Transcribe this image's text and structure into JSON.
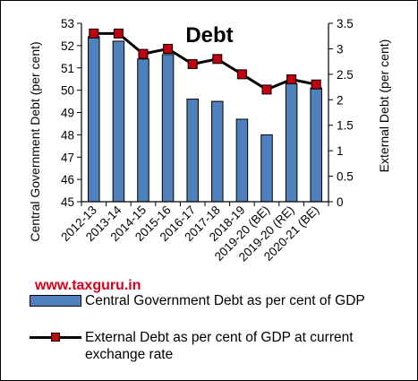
{
  "chart_data": {
    "type": "bar+line",
    "title": "Debt",
    "categories": [
      "2012-13",
      "2013-14",
      "2014-15",
      "2015-16",
      "2016-17",
      "2017-18",
      "2018-19",
      "2019-20 (BE)",
      "2019-20 (RE)",
      "2020-21 (BE)"
    ],
    "series": [
      {
        "name": "Central Government Debt as per cent of GDP",
        "type": "bar",
        "axis": "left",
        "color": "#4f81bd",
        "values": [
          52.4,
          52.2,
          51.4,
          51.6,
          49.6,
          49.5,
          48.7,
          48.0,
          50.3,
          50.1
        ]
      },
      {
        "name": "External Debt as per cent of GDP at current exchange rate",
        "type": "line",
        "axis": "right",
        "color": "#000000",
        "marker_color": "#c0000e",
        "values": [
          3.3,
          3.3,
          2.9,
          3.0,
          2.7,
          2.8,
          2.5,
          2.2,
          2.4,
          2.3
        ]
      }
    ],
    "ylabel_left": "Central Government Debt (per cent)",
    "ylabel_right": "External Debt (per cent)",
    "ylim_left": [
      45,
      53
    ],
    "ylim_right": [
      0,
      3.5
    ],
    "yticks_left": [
      "45",
      "46",
      "47",
      "48",
      "49",
      "50",
      "51",
      "52",
      "53"
    ],
    "yticks_right": [
      "0",
      "0.5",
      "1",
      "1.5",
      "2",
      "2.5",
      "3",
      "3.5"
    ],
    "grid": false,
    "legend_position": "bottom"
  },
  "watermark": "www.taxguru.in",
  "legend": {
    "bar_label": "Central Government Debt as per cent of GDP",
    "line_label_1": "External Debt as per cent of GDP at current",
    "line_label_2": "exchange rate"
  }
}
